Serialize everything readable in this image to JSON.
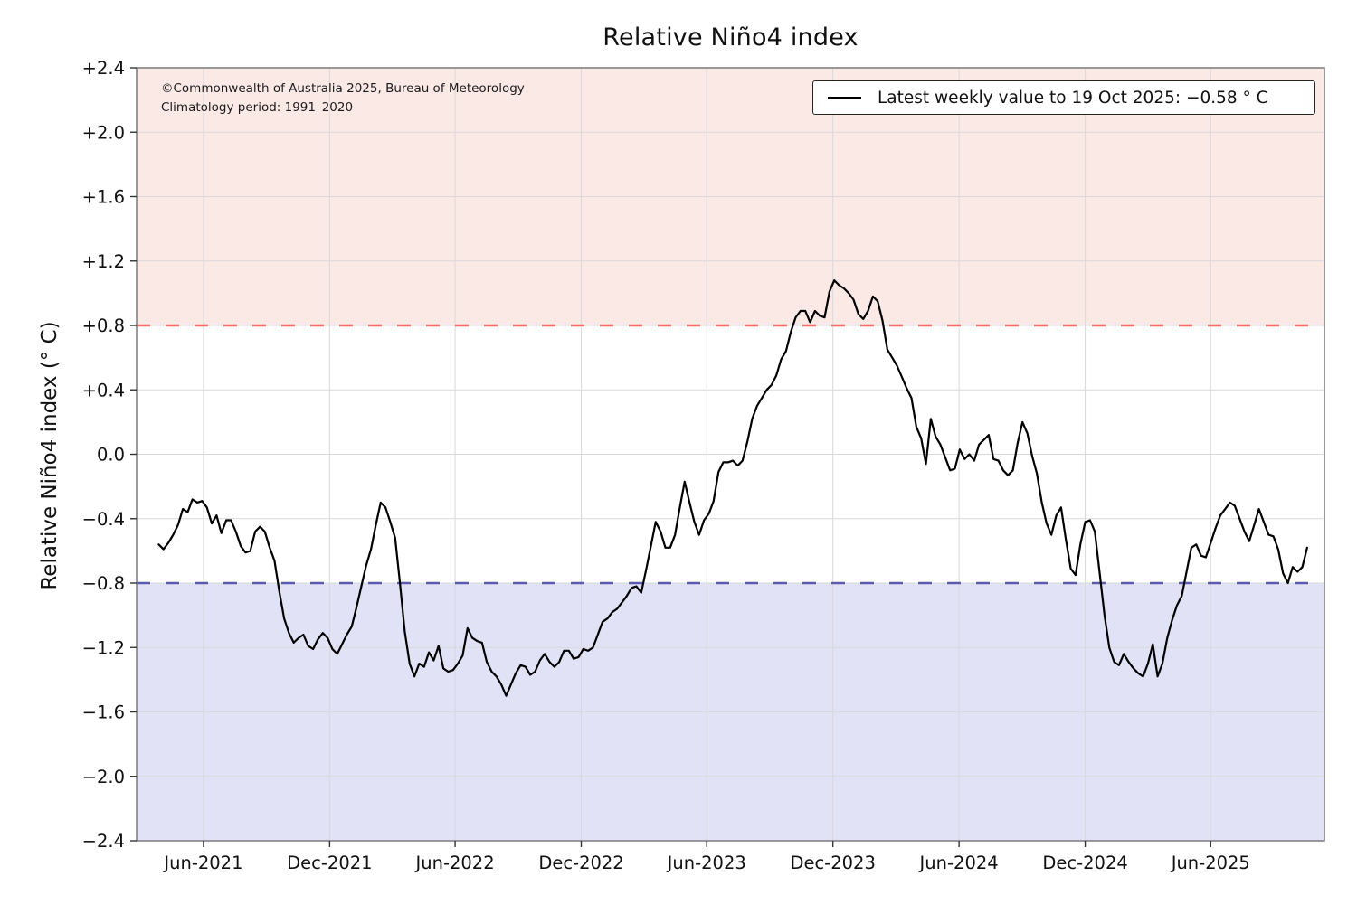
{
  "title": "Relative Niño4 index",
  "annotation": {
    "line1": "©Commonwealth of Australia 2025, Bureau of Meteorology",
    "line2": "Climatology period: 1991–2020"
  },
  "legend": {
    "label": "Latest weekly value to 19 Oct 2025: −0.58 ° C"
  },
  "colors": {
    "line": "#000000",
    "el_nino_band": "#fbe9e5",
    "la_nina_band": "#e2e2f7",
    "el_nino_threshold": "#fa6b6b",
    "la_nina_threshold": "#5c5cab",
    "grid": "#d9d9d9",
    "spine": "#7a7a7a",
    "tick": "#333333",
    "text": "#111111"
  },
  "chart_data": {
    "type": "line",
    "title": "Relative Niño4 index",
    "ylabel": "Relative Niño4 index (° C)",
    "ylim": [
      -2.4,
      2.4
    ],
    "grid": true,
    "legend_position": "upper right",
    "y_ticks": [
      {
        "v": 2.4,
        "label": "+2.4"
      },
      {
        "v": 2.0,
        "label": "+2.0"
      },
      {
        "v": 1.6,
        "label": "+1.6"
      },
      {
        "v": 1.2,
        "label": "+1.2"
      },
      {
        "v": 0.8,
        "label": "+0.8"
      },
      {
        "v": 0.4,
        "label": "+0.4"
      },
      {
        "v": 0.0,
        "label": "0.0"
      },
      {
        "v": -0.4,
        "label": "−0.4"
      },
      {
        "v": -0.8,
        "label": "−0.8"
      },
      {
        "v": -1.2,
        "label": "−1.2"
      },
      {
        "v": -1.6,
        "label": "−1.6"
      },
      {
        "v": -2.0,
        "label": "−2.0"
      },
      {
        "v": -2.4,
        "label": "−2.4"
      }
    ],
    "x_range": [
      "2021-02-24",
      "2025-11-13"
    ],
    "x_ticks": [
      {
        "date": "2021-06-01",
        "label": "Jun-2021"
      },
      {
        "date": "2021-12-01",
        "label": "Dec-2021"
      },
      {
        "date": "2022-06-01",
        "label": "Jun-2022"
      },
      {
        "date": "2022-12-01",
        "label": "Dec-2022"
      },
      {
        "date": "2023-06-01",
        "label": "Jun-2023"
      },
      {
        "date": "2023-12-01",
        "label": "Dec-2023"
      },
      {
        "date": "2024-06-01",
        "label": "Jun-2024"
      },
      {
        "date": "2024-12-01",
        "label": "Dec-2024"
      },
      {
        "date": "2025-06-01",
        "label": "Jun-2025"
      }
    ],
    "bands": [
      {
        "name": "el-nino-band",
        "from": 0.8,
        "to": 2.4,
        "color": "#fbe9e5"
      },
      {
        "name": "la-nina-band",
        "from": -2.4,
        "to": -0.8,
        "color": "#e2e2f7"
      }
    ],
    "thresholds": [
      {
        "name": "el-nino-threshold",
        "v": 0.8,
        "color": "#fa6b6b"
      },
      {
        "name": "la-nina-threshold",
        "v": -0.8,
        "color": "#5c5cab"
      }
    ],
    "series": [
      {
        "name": "Latest weekly value to 19 Oct 2025: −0.58 ° C",
        "color": "#000000",
        "start_date": "2021-03-28",
        "end_date": "2025-10-19",
        "interval_days": 7,
        "latest_value": -0.58,
        "values": [
          -0.56,
          -0.59,
          -0.55,
          -0.5,
          -0.44,
          -0.34,
          -0.36,
          -0.28,
          -0.3,
          -0.29,
          -0.33,
          -0.43,
          -0.38,
          -0.49,
          -0.41,
          -0.41,
          -0.48,
          -0.57,
          -0.61,
          -0.6,
          -0.48,
          -0.45,
          -0.48,
          -0.58,
          -0.66,
          -0.85,
          -1.02,
          -1.11,
          -1.17,
          -1.14,
          -1.12,
          -1.19,
          -1.21,
          -1.15,
          -1.11,
          -1.14,
          -1.21,
          -1.24,
          -1.18,
          -1.12,
          -1.07,
          -0.95,
          -0.82,
          -0.69,
          -0.59,
          -0.44,
          -0.3,
          -0.33,
          -0.42,
          -0.52,
          -0.8,
          -1.1,
          -1.3,
          -1.38,
          -1.3,
          -1.32,
          -1.23,
          -1.28,
          -1.19,
          -1.33,
          -1.35,
          -1.34,
          -1.3,
          -1.25,
          -1.08,
          -1.14,
          -1.16,
          -1.17,
          -1.29,
          -1.35,
          -1.38,
          -1.43,
          -1.5,
          -1.43,
          -1.36,
          -1.31,
          -1.32,
          -1.37,
          -1.35,
          -1.28,
          -1.24,
          -1.29,
          -1.32,
          -1.29,
          -1.22,
          -1.22,
          -1.27,
          -1.26,
          -1.21,
          -1.22,
          -1.2,
          -1.12,
          -1.04,
          -1.02,
          -0.98,
          -0.96,
          -0.92,
          -0.88,
          -0.83,
          -0.82,
          -0.86,
          -0.72,
          -0.57,
          -0.42,
          -0.48,
          -0.58,
          -0.58,
          -0.5,
          -0.33,
          -0.17,
          -0.3,
          -0.42,
          -0.5,
          -0.41,
          -0.37,
          -0.29,
          -0.11,
          -0.05,
          -0.05,
          -0.04,
          -0.07,
          -0.04,
          0.08,
          0.22,
          0.3,
          0.35,
          0.4,
          0.43,
          0.49,
          0.59,
          0.64,
          0.76,
          0.85,
          0.89,
          0.89,
          0.82,
          0.89,
          0.86,
          0.85,
          1.01,
          1.08,
          1.05,
          1.03,
          1.0,
          0.96,
          0.87,
          0.84,
          0.89,
          0.98,
          0.95,
          0.83,
          0.65,
          0.6,
          0.55,
          0.48,
          0.41,
          0.35,
          0.17,
          0.1,
          -0.06,
          0.22,
          0.11,
          0.06,
          -0.02,
          -0.1,
          -0.09,
          0.03,
          -0.03,
          0.0,
          -0.04,
          0.06,
          0.09,
          0.12,
          -0.03,
          -0.04,
          -0.1,
          -0.13,
          -0.1,
          0.07,
          0.2,
          0.13,
          -0.01,
          -0.12,
          -0.3,
          -0.43,
          -0.5,
          -0.38,
          -0.33,
          -0.53,
          -0.71,
          -0.75,
          -0.56,
          -0.42,
          -0.41,
          -0.48,
          -0.74,
          -1.0,
          -1.2,
          -1.29,
          -1.31,
          -1.24,
          -1.29,
          -1.33,
          -1.36,
          -1.38,
          -1.3,
          -1.18,
          -1.38,
          -1.3,
          -1.14,
          -1.03,
          -0.94,
          -0.88,
          -0.73,
          -0.58,
          -0.56,
          -0.63,
          -0.64,
          -0.55,
          -0.46,
          -0.38,
          -0.34,
          -0.3,
          -0.32,
          -0.4,
          -0.48,
          -0.54,
          -0.44,
          -0.34,
          -0.42,
          -0.5,
          -0.51,
          -0.59,
          -0.74,
          -0.8,
          -0.7,
          -0.73,
          -0.7,
          -0.58
        ]
      }
    ]
  }
}
